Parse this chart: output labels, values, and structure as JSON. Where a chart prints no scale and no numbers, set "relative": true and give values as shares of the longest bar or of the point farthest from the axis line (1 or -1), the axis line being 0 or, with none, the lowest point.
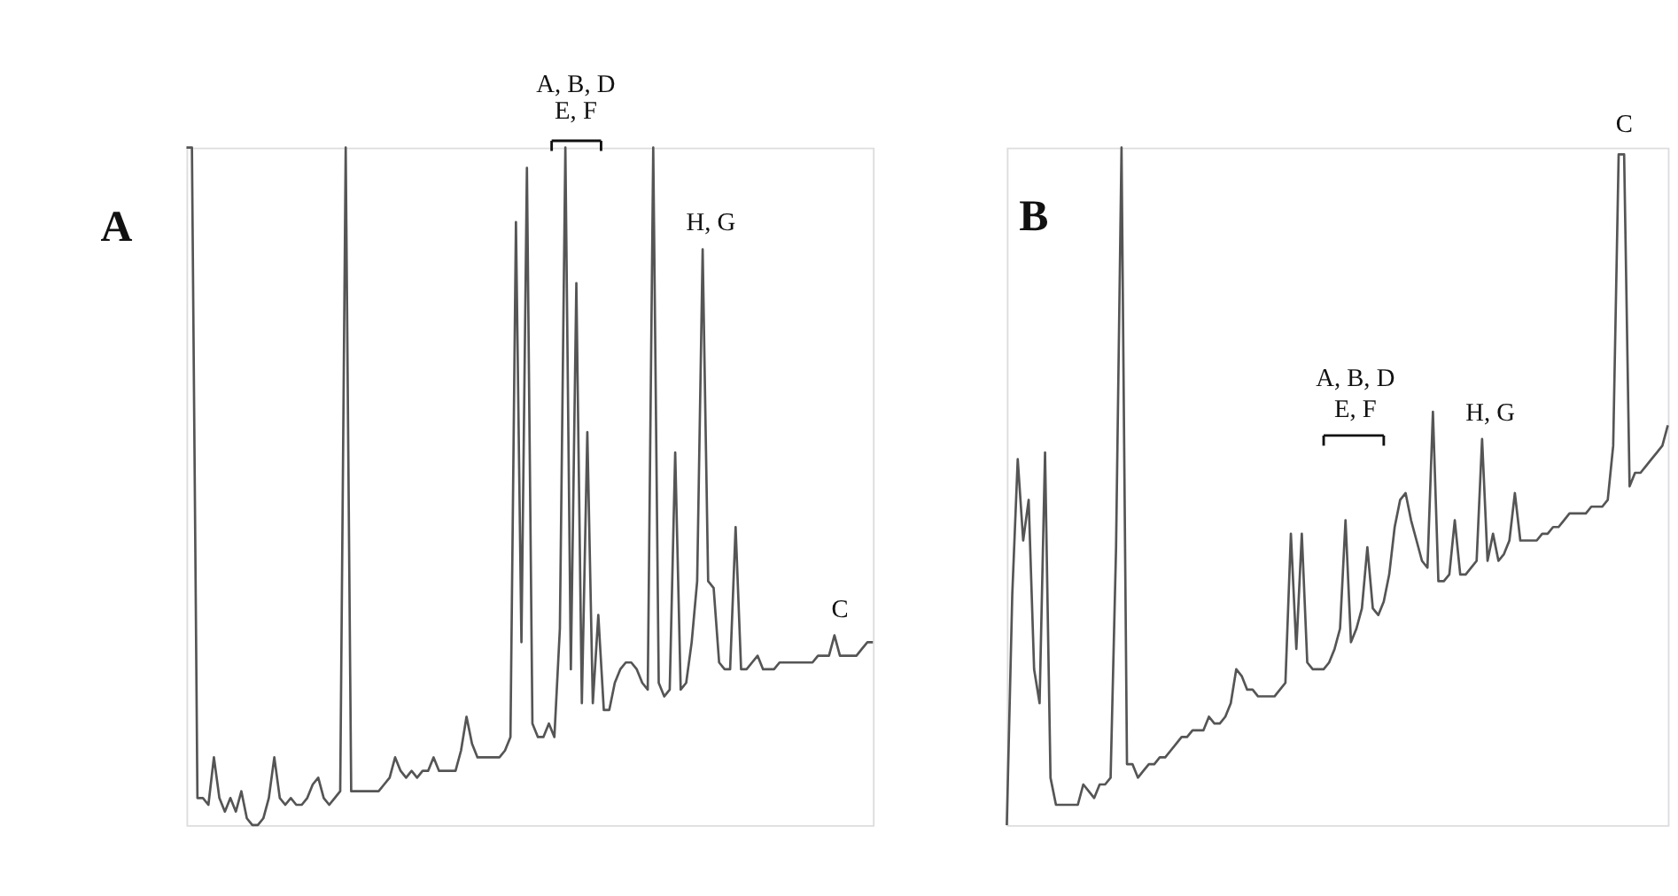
{
  "chart_data": [
    {
      "type": "line",
      "title": "A",
      "relative": true,
      "line_style": "solid",
      "categories": [
        null,
        null,
        null,
        null,
        null,
        null,
        null,
        null,
        null,
        null,
        null,
        null,
        null,
        null,
        null,
        null,
        null,
        null,
        null,
        null,
        null,
        null,
        null,
        null,
        null,
        null,
        null,
        null,
        null,
        null,
        null,
        null,
        null,
        null,
        null,
        null,
        null,
        null,
        null,
        null,
        null,
        null,
        null,
        null,
        null,
        null,
        null,
        null,
        null,
        null,
        null,
        null,
        null,
        null,
        null,
        null,
        null,
        null,
        null,
        null,
        null,
        null,
        null,
        null,
        null,
        null,
        null,
        null,
        null,
        null,
        null,
        null,
        null,
        null,
        null,
        null,
        null,
        null,
        null,
        null,
        null,
        null,
        null,
        null,
        null,
        null,
        null,
        null,
        null,
        null,
        null,
        null,
        null,
        null,
        null,
        null,
        null,
        null,
        null,
        null,
        null,
        null,
        null,
        null,
        null,
        null,
        null,
        null,
        null,
        null,
        null,
        null,
        null,
        null,
        null,
        null,
        null,
        null,
        null,
        null,
        null,
        null,
        null,
        null,
        null,
        null
      ],
      "series": [
        {
          "color": "#555555",
          "values": [
            1.0,
            1.0,
            0.04,
            0.04,
            0.03,
            0.1,
            0.04,
            0.02,
            0.04,
            0.02,
            0.05,
            0.01,
            0.0,
            0.0,
            0.01,
            0.04,
            0.1,
            0.04,
            0.03,
            0.04,
            0.03,
            0.03,
            0.04,
            0.06,
            0.07,
            0.04,
            0.03,
            0.04,
            0.05,
            1.0,
            0.05,
            0.05,
            0.05,
            0.05,
            0.05,
            0.05,
            0.06,
            0.07,
            0.1,
            0.08,
            0.07,
            0.08,
            0.07,
            0.08,
            0.08,
            0.1,
            0.08,
            0.08,
            0.08,
            0.08,
            0.11,
            0.16,
            0.12,
            0.1,
            0.1,
            0.1,
            0.1,
            0.1,
            0.11,
            0.13,
            0.89,
            0.27,
            0.97,
            0.15,
            0.13,
            0.13,
            0.15,
            0.13,
            0.29,
            1.0,
            0.23,
            0.8,
            0.18,
            0.58,
            0.18,
            0.31,
            0.17,
            0.17,
            0.21,
            0.23,
            0.24,
            0.24,
            0.23,
            0.21,
            0.2,
            1.0,
            0.21,
            0.19,
            0.2,
            0.55,
            0.2,
            0.21,
            0.27,
            0.36,
            0.85,
            0.36,
            0.35,
            0.24,
            0.23,
            0.23,
            0.44,
            0.23,
            0.23,
            0.24,
            0.25,
            0.23,
            0.23,
            0.23,
            0.24,
            0.24,
            0.24,
            0.24,
            0.24,
            0.24,
            0.24,
            0.25,
            0.25,
            0.25,
            0.28,
            0.25,
            0.25,
            0.25,
            0.25,
            0.26,
            0.27,
            0.27
          ]
        }
      ],
      "annotations": [
        "A, B, D",
        "E, F",
        "H, G",
        "C"
      ]
    },
    {
      "type": "line",
      "title": "B",
      "relative": true,
      "line_style": "solid",
      "categories": [
        null,
        null,
        null,
        null,
        null,
        null,
        null,
        null,
        null,
        null,
        null,
        null,
        null,
        null,
        null,
        null,
        null,
        null,
        null,
        null,
        null,
        null,
        null,
        null,
        null,
        null,
        null,
        null,
        null,
        null,
        null,
        null,
        null,
        null,
        null,
        null,
        null,
        null,
        null,
        null,
        null,
        null,
        null,
        null,
        null,
        null,
        null,
        null,
        null,
        null,
        null,
        null,
        null,
        null,
        null,
        null,
        null,
        null,
        null,
        null,
        null,
        null,
        null,
        null,
        null,
        null,
        null,
        null,
        null,
        null,
        null,
        null,
        null,
        null,
        null,
        null,
        null,
        null,
        null,
        null,
        null,
        null,
        null,
        null,
        null,
        null,
        null,
        null,
        null,
        null,
        null,
        null,
        null,
        null,
        null,
        null,
        null,
        null,
        null,
        null,
        null,
        null,
        null,
        null,
        null,
        null,
        null,
        null,
        null,
        null,
        null,
        null,
        null,
        null,
        null,
        null,
        null,
        null,
        null,
        null,
        null,
        null
      ],
      "series": [
        {
          "color": "#555555",
          "values": [
            0.0,
            0.34,
            0.54,
            0.42,
            0.48,
            0.23,
            0.18,
            0.55,
            0.07,
            0.03,
            0.03,
            0.03,
            0.03,
            0.03,
            0.06,
            0.05,
            0.04,
            0.06,
            0.06,
            0.07,
            0.41,
            1.0,
            0.09,
            0.09,
            0.07,
            0.08,
            0.09,
            0.09,
            0.1,
            0.1,
            0.11,
            0.12,
            0.13,
            0.13,
            0.14,
            0.14,
            0.14,
            0.16,
            0.15,
            0.15,
            0.16,
            0.18,
            0.23,
            0.22,
            0.2,
            0.2,
            0.19,
            0.19,
            0.19,
            0.19,
            0.2,
            0.21,
            0.43,
            0.26,
            0.43,
            0.24,
            0.23,
            0.23,
            0.23,
            0.24,
            0.26,
            0.29,
            0.45,
            0.27,
            0.29,
            0.32,
            0.41,
            0.32,
            0.31,
            0.33,
            0.37,
            0.44,
            0.48,
            0.49,
            0.45,
            0.42,
            0.39,
            0.38,
            0.61,
            0.36,
            0.36,
            0.37,
            0.45,
            0.37,
            0.37,
            0.38,
            0.39,
            0.57,
            0.39,
            0.43,
            0.39,
            0.4,
            0.42,
            0.49,
            0.42,
            0.42,
            0.42,
            0.42,
            0.43,
            0.43,
            0.44,
            0.44,
            0.45,
            0.46,
            0.46,
            0.46,
            0.46,
            0.47,
            0.47,
            0.47,
            0.48,
            0.56,
            0.99,
            0.99,
            0.5,
            0.52,
            0.52,
            0.53,
            0.54,
            0.55,
            0.56,
            0.59
          ]
        }
      ],
      "annotations": [
        "A, B, D",
        "E, F",
        "H, G",
        "C"
      ]
    }
  ]
}
